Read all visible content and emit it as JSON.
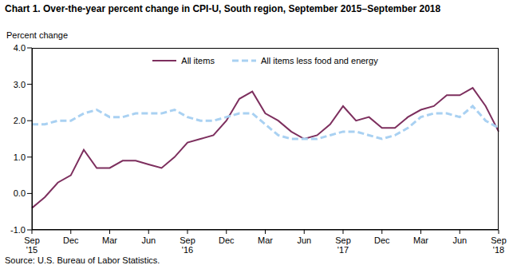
{
  "chart_data": {
    "type": "line",
    "title": "Chart 1. Over-the-year percent change in CPI-U, South region, September 2015–September 2018",
    "y_label": "Percent change",
    "source": "Source: U.S. Bureau of Labor Statistics.",
    "categories": [
      "Sep '15",
      null,
      null,
      "Dec",
      null,
      null,
      "Mar",
      null,
      null,
      "Jun",
      null,
      null,
      "Sep '16",
      null,
      null,
      "Dec",
      null,
      null,
      "Mar",
      null,
      null,
      "Jun",
      null,
      null,
      "Sep '17",
      null,
      null,
      "Dec",
      null,
      null,
      "Mar",
      null,
      null,
      "Jun",
      null,
      null,
      "Sep '18"
    ],
    "series": [
      {
        "name": "All items",
        "color": "#7d2f5e",
        "line_style": "solid",
        "values": [
          -0.4,
          -0.1,
          0.3,
          0.5,
          1.2,
          0.7,
          0.7,
          0.9,
          0.9,
          0.8,
          0.7,
          1.0,
          1.4,
          1.5,
          1.6,
          2.0,
          2.6,
          2.8,
          2.2,
          2.0,
          1.7,
          1.5,
          1.6,
          1.9,
          2.4,
          2.0,
          2.1,
          1.8,
          1.8,
          2.1,
          2.3,
          2.4,
          2.7,
          2.7,
          2.9,
          2.4,
          1.7
        ]
      },
      {
        "name": "All items less food and energy",
        "color": "#a9d1f2",
        "line_style": "dashed",
        "values": [
          1.9,
          1.9,
          2.0,
          2.0,
          2.2,
          2.3,
          2.1,
          2.1,
          2.2,
          2.2,
          2.2,
          2.3,
          2.1,
          2.0,
          2.0,
          2.1,
          2.2,
          2.2,
          1.9,
          1.6,
          1.5,
          1.5,
          1.5,
          1.6,
          1.7,
          1.7,
          1.6,
          1.5,
          1.6,
          1.8,
          2.1,
          2.2,
          2.2,
          2.1,
          2.4,
          2.0,
          1.8
        ]
      }
    ],
    "ylim": [
      -1.0,
      4.0
    ],
    "yticks": [
      {
        "value": -1.0,
        "label": "-1.0"
      },
      {
        "value": 0.0,
        "label": "0.0"
      },
      {
        "value": 1.0,
        "label": "1.0"
      },
      {
        "value": 2.0,
        "label": "2.0"
      },
      {
        "value": 3.0,
        "label": "3.0"
      },
      {
        "value": 4.0,
        "label": "4.0"
      }
    ],
    "grid": false,
    "legend": "top"
  }
}
